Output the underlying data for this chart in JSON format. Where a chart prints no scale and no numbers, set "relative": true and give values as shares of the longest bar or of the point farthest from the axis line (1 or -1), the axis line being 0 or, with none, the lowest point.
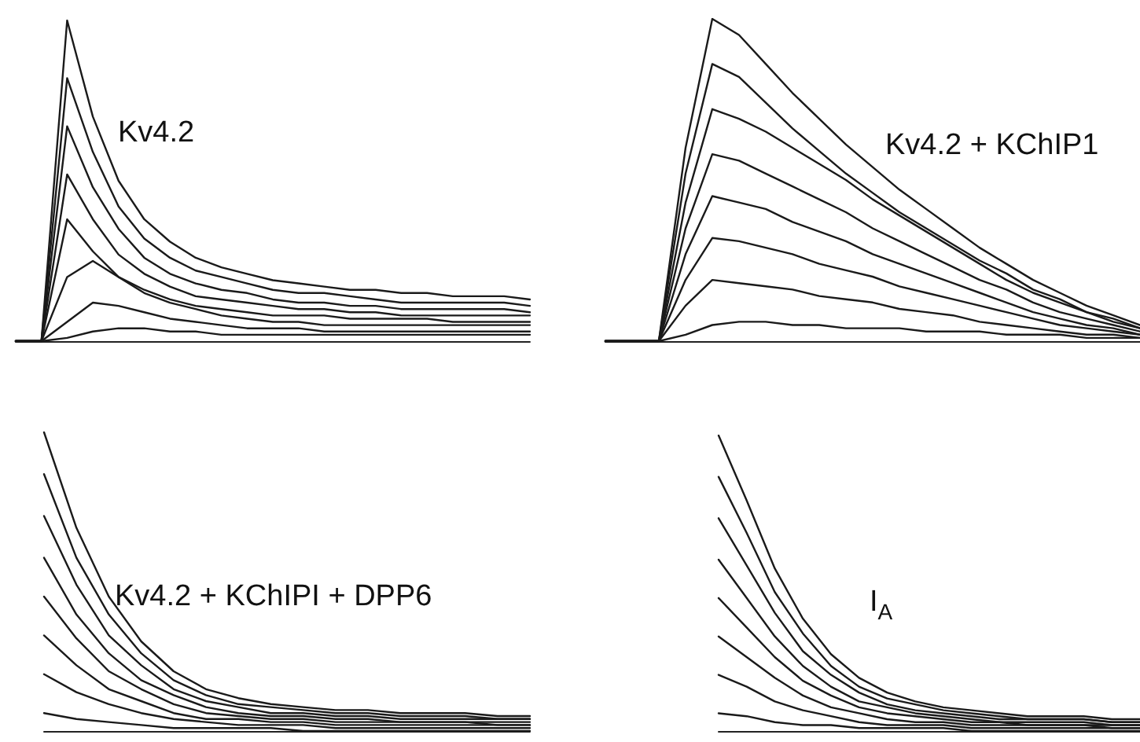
{
  "chart_data": [
    {
      "type": "line",
      "title": "Kv4.2",
      "relative": true,
      "categories": [
        null,
        null,
        null,
        null,
        null,
        null,
        null,
        null,
        null,
        null,
        null,
        null,
        null,
        null,
        null,
        null,
        null,
        null,
        null,
        null,
        null
      ],
      "series": [
        {
          "color": "#1a1a1a",
          "values": [
            0,
            0,
            1.0,
            0.7,
            0.5,
            0.38,
            0.31,
            0.26,
            0.23,
            0.21,
            0.19,
            0.18,
            0.17,
            0.16,
            0.16,
            0.15,
            0.15,
            0.14,
            0.14,
            0.14,
            0.13
          ]
        },
        {
          "color": "#1a1a1a",
          "values": [
            0,
            0,
            0.82,
            0.59,
            0.42,
            0.32,
            0.26,
            0.22,
            0.2,
            0.18,
            0.16,
            0.15,
            0.15,
            0.14,
            0.13,
            0.12,
            0.12,
            0.12,
            0.12,
            0.12,
            0.11
          ]
        },
        {
          "color": "#1a1a1a",
          "values": [
            0,
            0,
            0.67,
            0.48,
            0.35,
            0.26,
            0.21,
            0.18,
            0.16,
            0.15,
            0.13,
            0.12,
            0.12,
            0.11,
            0.11,
            0.1,
            0.1,
            0.1,
            0.1,
            0.1,
            0.09
          ]
        },
        {
          "color": "#1a1a1a",
          "values": [
            0,
            0,
            0.52,
            0.38,
            0.27,
            0.21,
            0.17,
            0.14,
            0.13,
            0.12,
            0.11,
            0.1,
            0.1,
            0.09,
            0.09,
            0.08,
            0.08,
            0.08,
            0.08,
            0.08,
            0.08
          ]
        },
        {
          "color": "#1a1a1a",
          "values": [
            0,
            0,
            0.38,
            0.28,
            0.2,
            0.16,
            0.13,
            0.11,
            0.1,
            0.09,
            0.08,
            0.08,
            0.08,
            0.07,
            0.07,
            0.07,
            0.07,
            0.06,
            0.06,
            0.06,
            0.06
          ]
        },
        {
          "color": "#1a1a1a",
          "values": [
            0,
            0,
            0.2,
            0.25,
            0.2,
            0.15,
            0.12,
            0.1,
            0.08,
            0.07,
            0.06,
            0.06,
            0.05,
            0.05,
            0.05,
            0.05,
            0.05,
            0.05,
            0.05,
            0.05,
            0.05
          ]
        },
        {
          "color": "#1a1a1a",
          "values": [
            0,
            0,
            0.06,
            0.12,
            0.11,
            0.09,
            0.07,
            0.06,
            0.05,
            0.04,
            0.04,
            0.04,
            0.03,
            0.03,
            0.03,
            0.03,
            0.03,
            0.03,
            0.03,
            0.03,
            0.03
          ]
        },
        {
          "color": "#1a1a1a",
          "values": [
            0,
            0,
            0.01,
            0.03,
            0.04,
            0.04,
            0.03,
            0.03,
            0.02,
            0.02,
            0.02,
            0.02,
            0.02,
            0.02,
            0.02,
            0.02,
            0.02,
            0.02,
            0.02,
            0.02,
            0.02
          ]
        }
      ]
    },
    {
      "type": "line",
      "title": "Kv4.2 + KChIP1",
      "relative": true,
      "categories": [
        null,
        null,
        null,
        null,
        null,
        null,
        null,
        null,
        null,
        null,
        null,
        null,
        null,
        null,
        null,
        null,
        null,
        null,
        null,
        null,
        null
      ],
      "series": [
        {
          "color": "#1a1a1a",
          "values": [
            0,
            0,
            0,
            0.6,
            1.0,
            0.95,
            0.86,
            0.77,
            0.69,
            0.61,
            0.54,
            0.47,
            0.41,
            0.35,
            0.29,
            0.24,
            0.19,
            0.15,
            0.11,
            0.08,
            0.05
          ]
        },
        {
          "color": "#1a1a1a",
          "values": [
            0,
            0,
            0,
            0.52,
            0.86,
            0.82,
            0.74,
            0.66,
            0.59,
            0.52,
            0.46,
            0.4,
            0.35,
            0.3,
            0.25,
            0.21,
            0.16,
            0.13,
            0.09,
            0.07,
            0.04
          ]
        },
        {
          "color": "#1a1a1a",
          "values": [
            0,
            0,
            0,
            0.43,
            0.72,
            0.69,
            0.65,
            0.6,
            0.55,
            0.5,
            0.44,
            0.39,
            0.34,
            0.29,
            0.24,
            0.19,
            0.15,
            0.12,
            0.09,
            0.06,
            0.04
          ]
        },
        {
          "color": "#1a1a1a",
          "values": [
            0,
            0,
            0,
            0.35,
            0.58,
            0.56,
            0.52,
            0.48,
            0.44,
            0.4,
            0.35,
            0.31,
            0.27,
            0.23,
            0.19,
            0.16,
            0.12,
            0.09,
            0.07,
            0.05,
            0.03
          ]
        },
        {
          "color": "#1a1a1a",
          "values": [
            0,
            0,
            0,
            0.27,
            0.45,
            0.43,
            0.41,
            0.37,
            0.34,
            0.31,
            0.27,
            0.24,
            0.21,
            0.18,
            0.15,
            0.12,
            0.09,
            0.07,
            0.05,
            0.04,
            0.02
          ]
        },
        {
          "color": "#1a1a1a",
          "values": [
            0,
            0,
            0,
            0.19,
            0.32,
            0.31,
            0.29,
            0.27,
            0.24,
            0.22,
            0.2,
            0.17,
            0.15,
            0.13,
            0.11,
            0.09,
            0.07,
            0.05,
            0.04,
            0.03,
            0.02
          ]
        },
        {
          "color": "#1a1a1a",
          "values": [
            0,
            0,
            0,
            0.11,
            0.19,
            0.18,
            0.17,
            0.16,
            0.14,
            0.13,
            0.12,
            0.1,
            0.09,
            0.08,
            0.06,
            0.05,
            0.04,
            0.03,
            0.02,
            0.02,
            0.01
          ]
        },
        {
          "color": "#1a1a1a",
          "values": [
            0,
            0,
            0,
            0.02,
            0.05,
            0.06,
            0.06,
            0.05,
            0.05,
            0.04,
            0.04,
            0.04,
            0.03,
            0.03,
            0.03,
            0.02,
            0.02,
            0.02,
            0.01,
            0.01,
            0.01
          ]
        }
      ]
    },
    {
      "type": "line",
      "title": "Kv4.2 + KChIPI + DPP6",
      "relative": true,
      "categories": [
        null,
        null,
        null,
        null,
        null,
        null,
        null,
        null,
        null,
        null,
        null,
        null,
        null,
        null,
        null,
        null
      ],
      "series": [
        {
          "color": "#1a1a1a",
          "values": [
            1.0,
            0.68,
            0.45,
            0.3,
            0.2,
            0.14,
            0.11,
            0.09,
            0.08,
            0.07,
            0.07,
            0.06,
            0.06,
            0.06,
            0.05,
            0.05
          ]
        },
        {
          "color": "#1a1a1a",
          "values": [
            0.86,
            0.58,
            0.39,
            0.26,
            0.17,
            0.12,
            0.09,
            0.08,
            0.07,
            0.06,
            0.06,
            0.05,
            0.05,
            0.05,
            0.04,
            0.04
          ]
        },
        {
          "color": "#1a1a1a",
          "values": [
            0.72,
            0.49,
            0.32,
            0.22,
            0.14,
            0.1,
            0.08,
            0.06,
            0.06,
            0.05,
            0.05,
            0.04,
            0.04,
            0.04,
            0.04,
            0.04
          ]
        },
        {
          "color": "#1a1a1a",
          "values": [
            0.58,
            0.39,
            0.26,
            0.17,
            0.12,
            0.08,
            0.06,
            0.05,
            0.05,
            0.04,
            0.04,
            0.03,
            0.03,
            0.03,
            0.03,
            0.03
          ]
        },
        {
          "color": "#1a1a1a",
          "values": [
            0.45,
            0.31,
            0.2,
            0.14,
            0.09,
            0.06,
            0.05,
            0.04,
            0.04,
            0.03,
            0.03,
            0.03,
            0.03,
            0.03,
            0.02,
            0.02
          ]
        },
        {
          "color": "#1a1a1a",
          "values": [
            0.32,
            0.22,
            0.14,
            0.1,
            0.06,
            0.04,
            0.04,
            0.03,
            0.03,
            0.02,
            0.02,
            0.02,
            0.02,
            0.02,
            0.02,
            0.02
          ]
        },
        {
          "color": "#1a1a1a",
          "values": [
            0.19,
            0.13,
            0.09,
            0.06,
            0.04,
            0.03,
            0.02,
            0.02,
            0.02,
            0.01,
            0.01,
            0.01,
            0.01,
            0.01,
            0.01,
            0.01
          ]
        },
        {
          "color": "#1a1a1a",
          "values": [
            0.06,
            0.04,
            0.03,
            0.02,
            0.01,
            0.01,
            0.01,
            0.01,
            0,
            0,
            0,
            0,
            0,
            0,
            0,
            0
          ]
        }
      ]
    },
    {
      "type": "line",
      "title": "I$_{A}$",
      "relative": true,
      "categories": [
        null,
        null,
        null,
        null,
        null,
        null,
        null,
        null,
        null,
        null,
        null,
        null,
        null,
        null,
        null,
        null
      ],
      "series": [
        {
          "color": "#1a1a1a",
          "values": [
            1.0,
            0.78,
            0.55,
            0.38,
            0.26,
            0.18,
            0.13,
            0.1,
            0.08,
            0.07,
            0.06,
            0.05,
            0.05,
            0.05,
            0.04,
            0.04
          ]
        },
        {
          "color": "#1a1a1a",
          "values": [
            0.86,
            0.67,
            0.47,
            0.33,
            0.22,
            0.15,
            0.11,
            0.09,
            0.07,
            0.06,
            0.05,
            0.04,
            0.04,
            0.04,
            0.03,
            0.03
          ]
        },
        {
          "color": "#1a1a1a",
          "values": [
            0.72,
            0.56,
            0.4,
            0.27,
            0.19,
            0.13,
            0.09,
            0.07,
            0.06,
            0.05,
            0.04,
            0.04,
            0.04,
            0.04,
            0.03,
            0.03
          ]
        },
        {
          "color": "#1a1a1a",
          "values": [
            0.58,
            0.45,
            0.32,
            0.22,
            0.15,
            0.1,
            0.08,
            0.06,
            0.05,
            0.04,
            0.03,
            0.03,
            0.03,
            0.03,
            0.02,
            0.02
          ]
        },
        {
          "color": "#1a1a1a",
          "values": [
            0.45,
            0.35,
            0.25,
            0.17,
            0.12,
            0.08,
            0.06,
            0.05,
            0.04,
            0.03,
            0.03,
            0.02,
            0.02,
            0.02,
            0.02,
            0.02
          ]
        },
        {
          "color": "#1a1a1a",
          "values": [
            0.32,
            0.25,
            0.18,
            0.12,
            0.08,
            0.06,
            0.04,
            0.03,
            0.03,
            0.02,
            0.02,
            0.02,
            0.02,
            0.02,
            0.01,
            0.01
          ]
        },
        {
          "color": "#1a1a1a",
          "values": [
            0.19,
            0.15,
            0.1,
            0.07,
            0.05,
            0.03,
            0.02,
            0.02,
            0.02,
            0.01,
            0.01,
            0.01,
            0.01,
            0.01,
            0.01,
            0.01
          ]
        },
        {
          "color": "#1a1a1a",
          "values": [
            0.06,
            0.05,
            0.03,
            0.02,
            0.02,
            0.01,
            0.01,
            0.01,
            0.01,
            0,
            0,
            0,
            0,
            0,
            0,
            0
          ]
        }
      ]
    }
  ]
}
